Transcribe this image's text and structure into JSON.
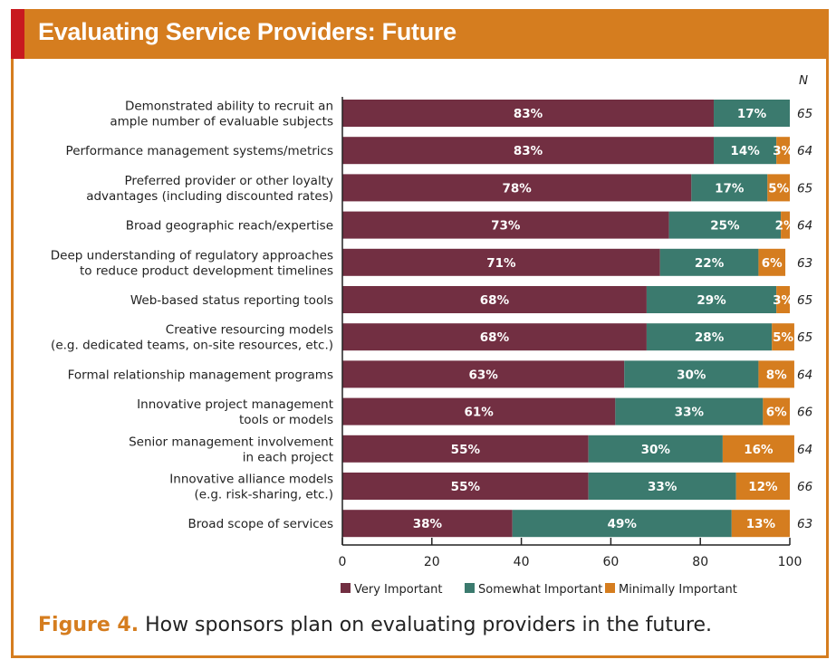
{
  "header": {
    "title": "Evaluating Service Providers: Future"
  },
  "caption": {
    "figure": "Figure 4.",
    "text": " How sponsors plan on evaluating providers in the future."
  },
  "colors": {
    "header": "#d57d1f",
    "accent_red": "#c8191f",
    "very": "#722f42",
    "somewhat": "#3b7a6e",
    "minimally": "#d57d1f"
  },
  "chart_data": {
    "type": "bar",
    "orientation": "horizontal",
    "stacked": true,
    "n_header": "N",
    "categories": [
      [
        "Demonstrated ability to recruit an",
        "ample number of evaluable subjects"
      ],
      [
        "Performance management systems/metrics"
      ],
      [
        "Preferred provider or other loyalty",
        "advantages (including discounted rates)"
      ],
      [
        "Broad geographic reach/expertise"
      ],
      [
        "Deep understanding of regulatory approaches",
        "to reduce product development timelines"
      ],
      [
        "Web-based status reporting tools"
      ],
      [
        "Creative resourcing models",
        "(e.g. dedicated teams, on-site resources, etc.)"
      ],
      [
        "Formal relationship management programs"
      ],
      [
        "Innovative project management",
        "tools or models"
      ],
      [
        "Senior management involvement",
        "in each project"
      ],
      [
        "Innovative alliance models",
        "(e.g. risk-sharing, etc.)"
      ],
      [
        "Broad scope of services"
      ]
    ],
    "series": [
      {
        "name": "Very Important",
        "color": "#722f42",
        "values": [
          83,
          83,
          78,
          73,
          71,
          68,
          68,
          63,
          61,
          55,
          55,
          38
        ]
      },
      {
        "name": "Somewhat Important",
        "color": "#3b7a6e",
        "values": [
          17,
          14,
          17,
          25,
          22,
          29,
          28,
          30,
          33,
          30,
          33,
          49
        ]
      },
      {
        "name": "Minimally Important",
        "color": "#d57d1f",
        "values": [
          null,
          3,
          5,
          2,
          6,
          3,
          5,
          8,
          6,
          16,
          12,
          13
        ]
      }
    ],
    "n": [
      65,
      64,
      65,
      64,
      63,
      65,
      65,
      64,
      66,
      64,
      66,
      63
    ],
    "xlim": [
      0,
      100
    ],
    "xticks": [
      0,
      20,
      40,
      60,
      80,
      100
    ],
    "legend": "bottom"
  }
}
